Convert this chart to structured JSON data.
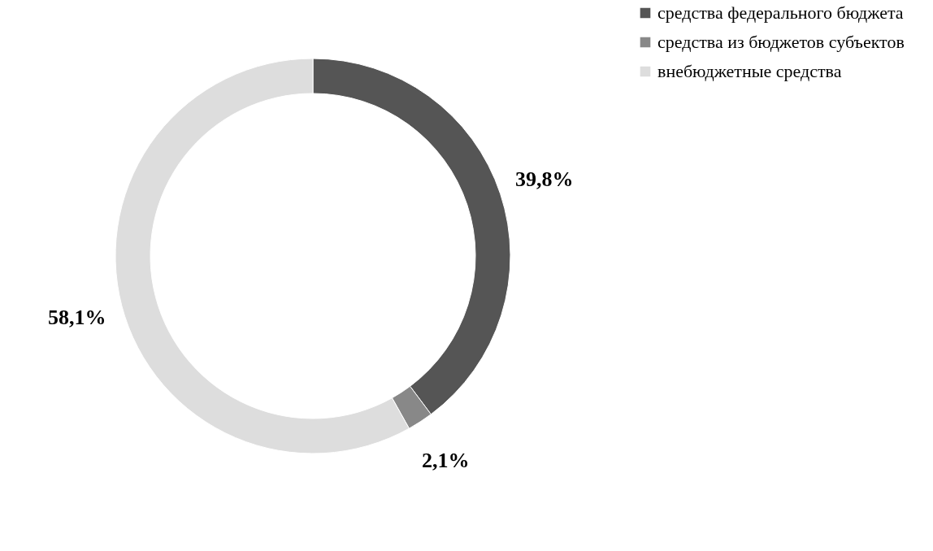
{
  "chart_data": {
    "type": "donut",
    "categories": [
      "средства федерального бюджета",
      "средства из бюджетов субъектов",
      "внебюджетные средства"
    ],
    "values": [
      39.8,
      2.1,
      58.1
    ],
    "colors": [
      "#555555",
      "#888888",
      "#dddddd"
    ],
    "value_labels": [
      "39,8%",
      "2,1%",
      "58,1%"
    ],
    "legend": "right"
  }
}
